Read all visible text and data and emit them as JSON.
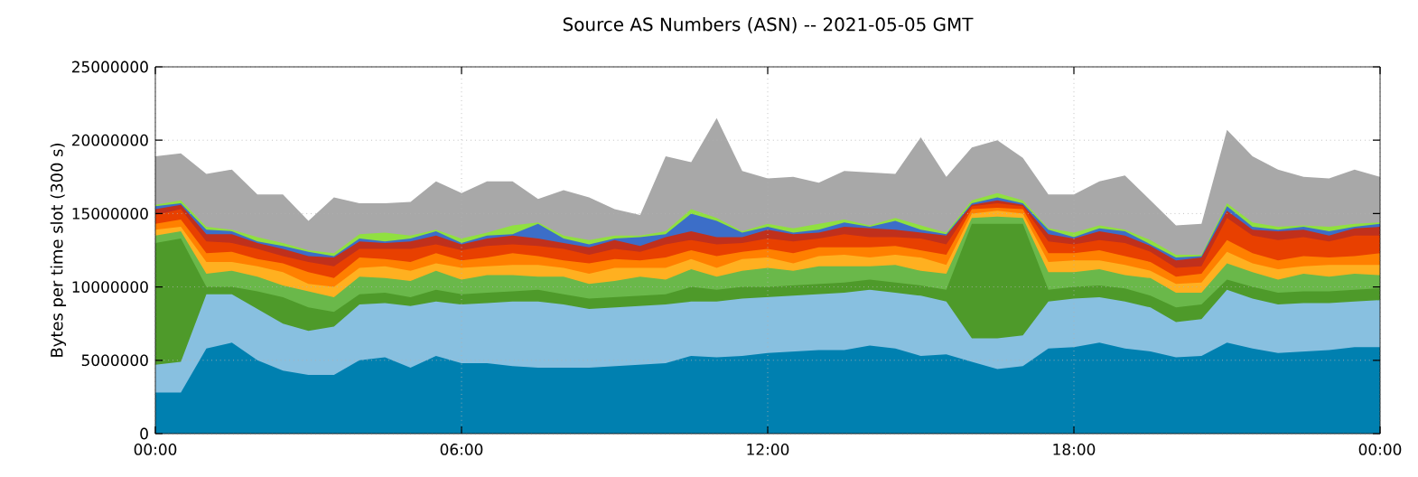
{
  "chart_data": {
    "type": "area",
    "stacked": true,
    "title": "Source AS Numbers (ASN) -- 2021-05-05 GMT",
    "ylabel": "Bytes per time slot (300 s)",
    "x": [
      0,
      0.5,
      1,
      1.5,
      2,
      2.5,
      3,
      3.5,
      4,
      4.5,
      5,
      5.5,
      6,
      6.5,
      7,
      7.5,
      8,
      8.5,
      9,
      9.5,
      10,
      10.5,
      11,
      11.5,
      12,
      12.5,
      13,
      13.5,
      14,
      14.5,
      15,
      15.5,
      16,
      16.5,
      17,
      17.5,
      18,
      18.5,
      19,
      19.5,
      20,
      20.5,
      21,
      21.5,
      22,
      22.5,
      23,
      23.5,
      24
    ],
    "series": [
      {
        "color": "#0080b0",
        "values": [
          2800000.0,
          2800000.0,
          5800000.0,
          6200000.0,
          5000000.0,
          4300000.0,
          4000000.0,
          4000000.0,
          5000000.0,
          5200000.0,
          4500000.0,
          5300000.0,
          4800000.0,
          4800000.0,
          4600000.0,
          4500000.0,
          4500000.0,
          4500000.0,
          4600000.0,
          4700000.0,
          4800000.0,
          5300000.0,
          5200000.0,
          5300000.0,
          5500000.0,
          5600000.0,
          5700000.0,
          5700000.0,
          6000000.0,
          5800000.0,
          5300000.0,
          5400000.0,
          4900000.0,
          4400000.0,
          4600000.0,
          5800000.0,
          5900000.0,
          6200000.0,
          5800000.0,
          5600000.0,
          5200000.0,
          5300000.0,
          6200000.0,
          5800000.0,
          5500000.0,
          5600000.0,
          5700000.0,
          5900000.0,
          5900000.0
        ]
      },
      {
        "color": "#88c0e0",
        "values": [
          1900000.0,
          2100000.0,
          3700000.0,
          3300000.0,
          3500000.0,
          3200000.0,
          3000000.0,
          3300000.0,
          3800000.0,
          3700000.0,
          4200000.0,
          3700000.0,
          4000000.0,
          4100000.0,
          4400000.0,
          4500000.0,
          4300000.0,
          4000000.0,
          4000000.0,
          4000000.0,
          4000000.0,
          3700000.0,
          3800000.0,
          3900000.0,
          3800000.0,
          3800000.0,
          3800000.0,
          3900000.0,
          3800000.0,
          3800000.0,
          4100000.0,
          3600000.0,
          1600000.0,
          2100000.0,
          2100000.0,
          3200000.0,
          3300000.0,
          3100000.0,
          3200000.0,
          3000000.0,
          2400000.0,
          2500000.0,
          3600000.0,
          3400000.0,
          3300000.0,
          3300000.0,
          3200000.0,
          3100000.0,
          3200000.0
        ]
      },
      {
        "color": "#4e9a2a",
        "values": [
          8300000.0,
          8400000.0,
          500000.0,
          500000.0,
          1200000.0,
          1800000.0,
          1600000.0,
          1000000.0,
          700000.0,
          700000.0,
          600000.0,
          800000.0,
          700000.0,
          700000.0,
          700000.0,
          800000.0,
          700000.0,
          700000.0,
          700000.0,
          700000.0,
          700000.0,
          1000000.0,
          800000.0,
          800000.0,
          700000.0,
          700000.0,
          700000.0,
          700000.0,
          700000.0,
          700000.0,
          700000.0,
          800000.0,
          7800000.0,
          7800000.0,
          7600000.0,
          800000.0,
          800000.0,
          800000.0,
          900000.0,
          800000.0,
          1000000.0,
          1000000.0,
          700000.0,
          800000.0,
          800000.0,
          800000.0,
          800000.0,
          800000.0,
          800000.0
        ]
      },
      {
        "color": "#6ab84a",
        "values": [
          500000.0,
          500000.0,
          900000.0,
          1100000.0,
          1000000.0,
          800000.0,
          1100000.0,
          1000000.0,
          1200000.0,
          1000000.0,
          1100000.0,
          1300000.0,
          1000000.0,
          1200000.0,
          1100000.0,
          900000.0,
          1200000.0,
          1000000.0,
          1100000.0,
          1300000.0,
          1000000.0,
          1200000.0,
          900000.0,
          1100000.0,
          1300000.0,
          1000000.0,
          1200000.0,
          1100000.0,
          900000.0,
          1200000.0,
          1000000.0,
          1100000.0,
          400000.0,
          500000.0,
          400000.0,
          1200000.0,
          1000000.0,
          1100000.0,
          900000.0,
          1200000.0,
          1000000.0,
          800000.0,
          1100000.0,
          1000000.0,
          900000.0,
          1200000.0,
          1000000.0,
          1100000.0,
          900000.0
        ]
      },
      {
        "color": "#ffb020",
        "values": [
          400000.0,
          300000.0,
          800000.0,
          600000.0,
          700000.0,
          900000.0,
          500000.0,
          700000.0,
          600000.0,
          800000.0,
          700000.0,
          500000.0,
          800000.0,
          600000.0,
          700000.0,
          800000.0,
          600000.0,
          700000.0,
          900000.0,
          600000.0,
          800000.0,
          700000.0,
          600000.0,
          800000.0,
          700000.0,
          500000.0,
          700000.0,
          800000.0,
          600000.0,
          700000.0,
          900000.0,
          600000.0,
          300000.0,
          400000.0,
          300000.0,
          700000.0,
          800000.0,
          600000.0,
          700000.0,
          500000.0,
          600000.0,
          700000.0,
          800000.0,
          600000.0,
          700000.0,
          500000.0,
          800000.0,
          600000.0,
          700000.0
        ]
      },
      {
        "color": "#ff8000",
        "values": [
          400000.0,
          500000.0,
          600000.0,
          700000.0,
          500000.0,
          600000.0,
          800000.0,
          600000.0,
          700000.0,
          500000.0,
          600000.0,
          700000.0,
          500000.0,
          600000.0,
          800000.0,
          600000.0,
          500000.0,
          700000.0,
          600000.0,
          500000.0,
          700000.0,
          600000.0,
          800000.0,
          500000.0,
          600000.0,
          700000.0,
          600000.0,
          500000.0,
          700000.0,
          600000.0,
          500000.0,
          700000.0,
          300000.0,
          200000.0,
          300000.0,
          600000.0,
          500000.0,
          700000.0,
          600000.0,
          600000.0,
          500000.0,
          600000.0,
          800000.0,
          700000.0,
          600000.0,
          700000.0,
          500000.0,
          600000.0,
          800000.0
        ]
      },
      {
        "color": "#e84000",
        "values": [
          600000.0,
          700000.0,
          800000.0,
          600000.0,
          700000.0,
          500000.0,
          700000.0,
          800000.0,
          600000.0,
          700000.0,
          900000.0,
          600000.0,
          700000.0,
          800000.0,
          600000.0,
          700000.0,
          800000.0,
          600000.0,
          700000.0,
          600000.0,
          900000.0,
          700000.0,
          800000.0,
          600000.0,
          700000.0,
          800000.0,
          600000.0,
          900000.0,
          700000.0,
          600000.0,
          800000.0,
          700000.0,
          200000.0,
          300000.0,
          200000.0,
          800000.0,
          600000.0,
          700000.0,
          900000.0,
          700000.0,
          600000.0,
          500000.0,
          1500000.0,
          1200000.0,
          1400000.0,
          1300000.0,
          1100000.0,
          1400000.0,
          1200000.0
        ]
      },
      {
        "color": "#c0301c",
        "values": [
          400000.0,
          300000.0,
          500000.0,
          600000.0,
          400000.0,
          500000.0,
          400000.0,
          600000.0,
          500000.0,
          400000.0,
          500000.0,
          600000.0,
          400000.0,
          500000.0,
          600000.0,
          500000.0,
          400000.0,
          500000.0,
          600000.0,
          400000.0,
          500000.0,
          600000.0,
          500000.0,
          400000.0,
          600000.0,
          500000.0,
          400000.0,
          500000.0,
          600000.0,
          500000.0,
          400000.0,
          600000.0,
          100000.0,
          200000.0,
          100000.0,
          500000.0,
          400000.0,
          600000.0,
          500000.0,
          400000.0,
          500000.0,
          600000.0,
          500000.0,
          400000.0,
          600000.0,
          500000.0,
          400000.0,
          500000.0,
          600000.0
        ]
      },
      {
        "color": "#3c6ec8",
        "values": [
          200000.0,
          100000.0,
          300000.0,
          200000.0,
          100000.0,
          200000.0,
          300000.0,
          100000.0,
          200000.0,
          100000.0,
          200000.0,
          300000.0,
          100000.0,
          200000.0,
          100000.0,
          1000000.0,
          300000.0,
          200000.0,
          100000.0,
          600000.0,
          200000.0,
          1200000.0,
          1100000.0,
          300000.0,
          200000.0,
          100000.0,
          200000.0,
          300000.0,
          100000.0,
          600000.0,
          200000.0,
          100000.0,
          100000.0,
          200000.0,
          100000.0,
          300000.0,
          100000.0,
          200000.0,
          300000.0,
          100000.0,
          200000.0,
          100000.0,
          300000.0,
          200000.0,
          100000.0,
          200000.0,
          300000.0,
          100000.0,
          200000.0
        ]
      },
      {
        "color": "#90e040",
        "values": [
          100000.0,
          200000.0,
          200000.0,
          100000.0,
          300000.0,
          200000.0,
          100000.0,
          200000.0,
          300000.0,
          600000.0,
          200000.0,
          100000.0,
          300000.0,
          200000.0,
          600000.0,
          100000.0,
          200000.0,
          300000.0,
          200000.0,
          100000.0,
          200000.0,
          300000.0,
          200000.0,
          100000.0,
          200000.0,
          300000.0,
          400000.0,
          200000.0,
          100000.0,
          200000.0,
          300000.0,
          100000.0,
          200000.0,
          300000.0,
          200000.0,
          100000.0,
          300000.0,
          200000.0,
          100000.0,
          300000.0,
          200000.0,
          100000.0,
          200000.0,
          300000.0,
          200000.0,
          100000.0,
          300000.0,
          200000.0,
          100000.0
        ]
      },
      {
        "color": "#a8a8a8",
        "values": [
          3300000.0,
          3200000.0,
          3600000.0,
          4100000.0,
          2900000.0,
          3300000.0,
          2000000.0,
          3800000.0,
          2100000.0,
          2000000.0,
          2300000.0,
          3300000.0,
          3100000.0,
          3500000.0,
          3000000.0,
          1600000.0,
          3100000.0,
          2900000.0,
          1800000.0,
          1400000.0,
          5100000.0,
          3200000.0,
          6800000.0,
          4100000.0,
          3100000.0,
          3500000.0,
          2800000.0,
          3300000.0,
          3600000.0,
          3000000.0,
          6000000.0,
          3800000.0,
          3600000.0,
          3600000.0,
          2900000.0,
          2300000.0,
          2600000.0,
          3000000.0,
          3700000.0,
          2700000.0,
          2000000.0,
          2100000.0,
          5000000.0,
          4500000.0,
          3900000.0,
          3300000.0,
          3300000.0,
          3700000.0,
          3100000.0
        ]
      }
    ],
    "xlim": [
      0,
      24
    ],
    "ylim": [
      0,
      25000000
    ],
    "xticks": [
      {
        "value": 0,
        "label": "00:00"
      },
      {
        "value": 6,
        "label": "06:00"
      },
      {
        "value": 12,
        "label": "12:00"
      },
      {
        "value": 18,
        "label": "18:00"
      },
      {
        "value": 24,
        "label": "00:00"
      }
    ],
    "yticks": [
      0,
      5000000,
      10000000,
      15000000,
      20000000,
      25000000
    ],
    "grid": true,
    "marker": "none"
  }
}
